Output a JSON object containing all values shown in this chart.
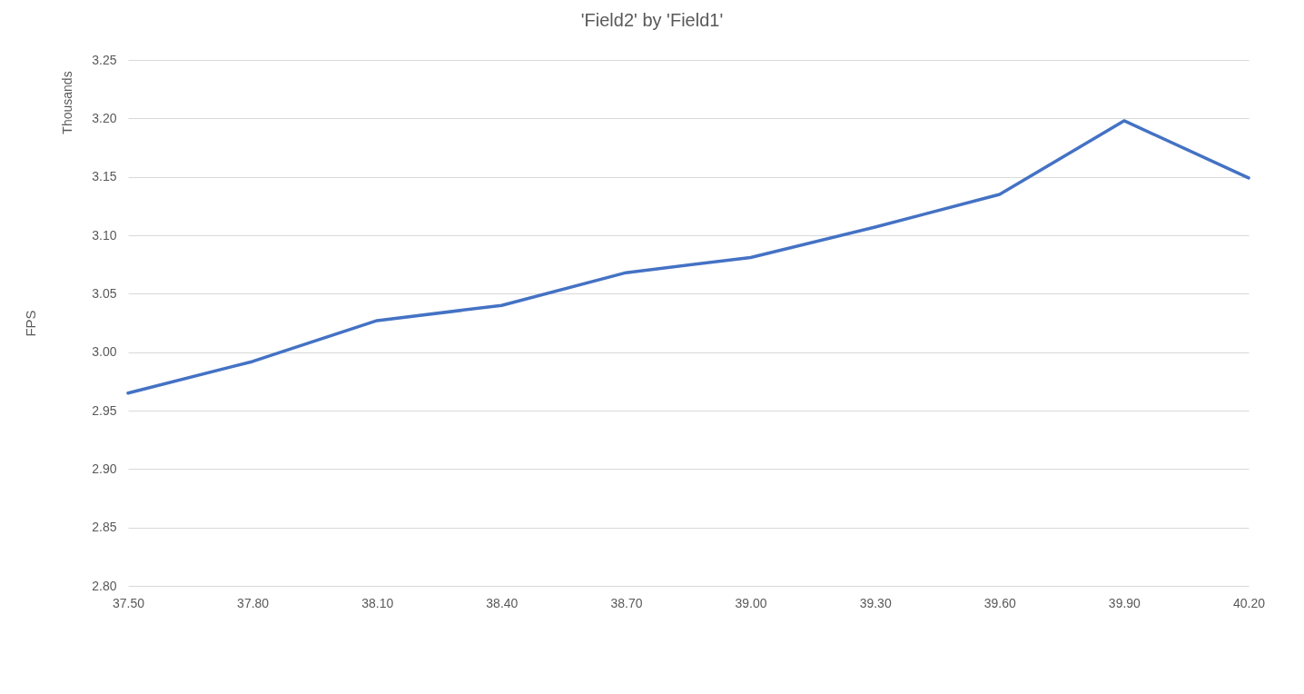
{
  "chart_data": {
    "type": "line",
    "title": "'Field2' by 'Field1'",
    "ylabel": "FPS",
    "annotations": [
      "Thousands"
    ],
    "x": [
      37.5,
      37.8,
      38.1,
      38.4,
      38.7,
      39.0,
      39.3,
      39.6,
      39.9,
      40.2
    ],
    "series": [
      {
        "color": "#4472c4",
        "values": [
          2.965,
          2.992,
          3.027,
          3.04,
          3.068,
          3.081,
          3.107,
          3.135,
          3.198,
          3.149
        ]
      }
    ],
    "xlim": [
      37.5,
      40.2
    ],
    "xticks": [
      {
        "value": 37.5,
        "label": "37.50"
      },
      {
        "value": 37.8,
        "label": "37.80"
      },
      {
        "value": 38.1,
        "label": "38.10"
      },
      {
        "value": 38.4,
        "label": "38.40"
      },
      {
        "value": 38.7,
        "label": "38.70"
      },
      {
        "value": 39.0,
        "label": "39.00"
      },
      {
        "value": 39.3,
        "label": "39.30"
      },
      {
        "value": 39.6,
        "label": "39.60"
      },
      {
        "value": 39.9,
        "label": "39.90"
      },
      {
        "value": 40.2,
        "label": "40.20"
      }
    ],
    "ylim": [
      2.8,
      3.25
    ],
    "yticks": [
      {
        "value": 2.8,
        "label": "2.80"
      },
      {
        "value": 2.85,
        "label": "2.85"
      },
      {
        "value": 2.9,
        "label": "2.90"
      },
      {
        "value": 2.95,
        "label": "2.95"
      },
      {
        "value": 3.0,
        "label": "3.00"
      },
      {
        "value": 3.05,
        "label": "3.05"
      },
      {
        "value": 3.1,
        "label": "3.10"
      },
      {
        "value": 3.15,
        "label": "3.15"
      },
      {
        "value": 3.2,
        "label": "3.20"
      },
      {
        "value": 3.25,
        "label": "3.25"
      }
    ],
    "grid": "y",
    "line_style": "solid"
  }
}
